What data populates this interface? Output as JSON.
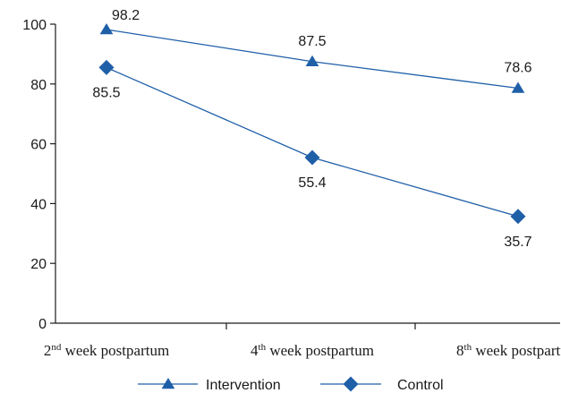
{
  "chart_data": {
    "type": "line",
    "categories": [
      {
        "sup_prefix": "2",
        "sup": "nd",
        "rest": " week postpartum"
      },
      {
        "sup_prefix": "4",
        "sup": "th",
        "rest": " week postpartum"
      },
      {
        "sup_prefix": "8",
        "sup": "th",
        "rest": " week postpartum"
      }
    ],
    "ylim": [
      0,
      100
    ],
    "yticks": [
      0,
      20,
      40,
      60,
      80,
      100
    ],
    "grid": false,
    "legend_position": "bottom",
    "series": [
      {
        "name": "Intervention",
        "marker": "triangle",
        "color": "#1f5fa8",
        "values": [
          98.2,
          87.5,
          78.6
        ],
        "labels": [
          "98.2",
          "87.5",
          "78.6"
        ],
        "label_side": [
          "above-right",
          "above",
          "above"
        ]
      },
      {
        "name": "Control",
        "marker": "diamond",
        "color": "#1f5fa8",
        "values": [
          85.5,
          55.4,
          35.7
        ],
        "labels": [
          "85.5",
          "55.4",
          "35.7"
        ],
        "label_side": [
          "below",
          "below",
          "below"
        ]
      }
    ]
  }
}
